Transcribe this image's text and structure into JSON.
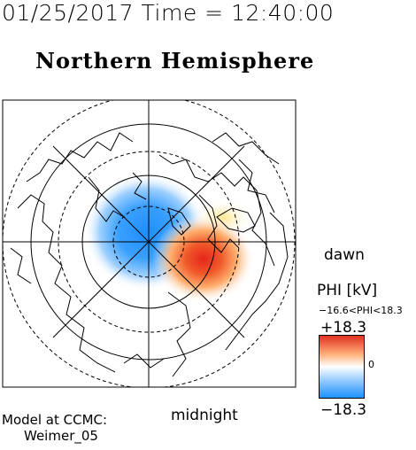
{
  "header": {
    "timestamp": "01/25/2017 Time = 12:40:00",
    "title": "Northern Hemisphere"
  },
  "map": {
    "dawn_label": "dawn",
    "midnight_label": "midnight",
    "projection": "polar",
    "dashed_circles": true,
    "meridian_lines": true
  },
  "colorbar": {
    "variable_label": "PHI [kV]",
    "range_text": "−16.6<PHI<18.3",
    "max_label": "+18.3",
    "min_label": "−18.3",
    "zero_label": "0",
    "colors": {
      "negative": "#1e90ff",
      "neutral": "#ffffff",
      "positive": "#e03020"
    }
  },
  "footer": {
    "model_label": "Model at CCMC:",
    "model_name": "Weimer_05"
  }
}
